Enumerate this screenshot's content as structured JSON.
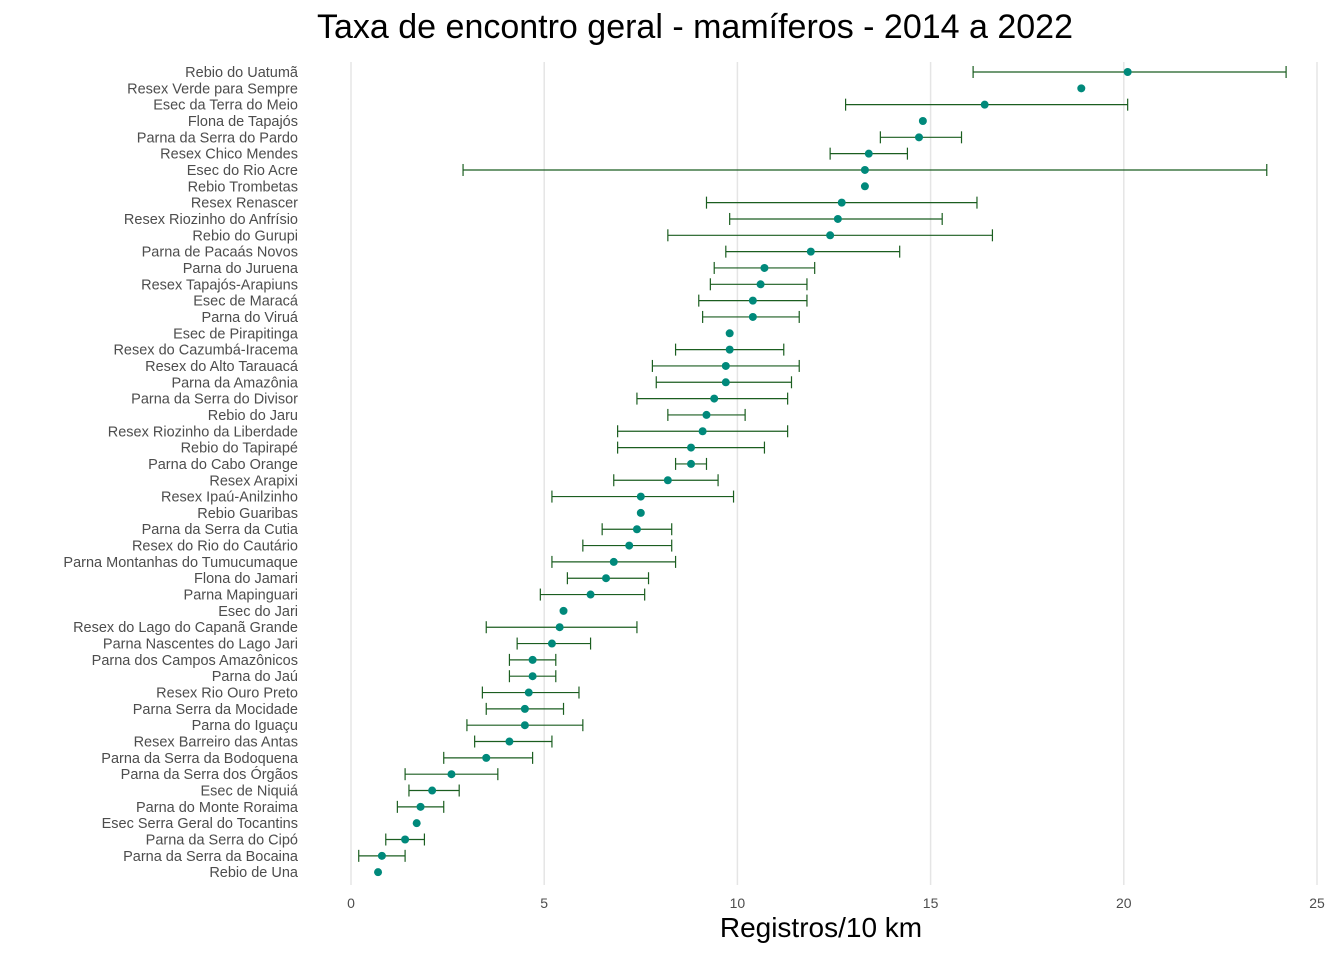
{
  "chart_data": {
    "type": "scatter",
    "title": "Taxa de encontro geral - mamíferos - 2014 a 2022",
    "xlabel": "Registros/10 km",
    "ylabel": "",
    "xlim": [
      0,
      25
    ],
    "xticks": [
      "0",
      "5",
      "10",
      "15",
      "20",
      "25"
    ],
    "grid": "vertical",
    "colors": {
      "point": "#00897B",
      "errorbar": "#1B5E20",
      "grid": "#E5E5E5",
      "label": "#4D4D4D"
    },
    "categories": [
      "Rebio do Uatumã",
      "Resex Verde para Sempre",
      "Esec da Terra do Meio",
      "Flona de Tapajós",
      "Parna da Serra do Pardo",
      "Resex Chico Mendes",
      "Esec do Rio Acre",
      "Rebio Trombetas",
      "Resex Renascer",
      "Resex Riozinho do Anfrísio",
      "Rebio do Gurupi",
      "Parna de Pacaás Novos",
      "Parna do Juruena",
      "Resex Tapajós-Arapiuns",
      "Esec de Maracá",
      "Parna do Viruá",
      "Esec de Pirapitinga",
      "Resex do Cazumbá-Iracema",
      "Resex do Alto Tarauacá",
      "Parna da Amazônia",
      "Parna da Serra do Divisor",
      "Rebio do Jaru",
      "Resex Riozinho da Liberdade",
      "Rebio do Tapirapé",
      "Parna do Cabo Orange",
      "Resex Arapixi",
      "Resex Ipaú-Anilzinho",
      "Rebio Guaribas",
      "Parna da Serra da Cutia",
      "Resex do Rio do Cautário",
      "Parna Montanhas do Tumucumaque",
      "Flona do Jamari",
      "Parna Mapinguari",
      "Esec do Jari",
      "Resex do Lago do Capanã Grande",
      "Parna Nascentes do Lago Jari",
      "Parna dos Campos Amazônicos",
      "Parna do Jaú",
      "Resex Rio Ouro Preto",
      "Parna Serra da Mocidade",
      "Parna do Iguaçu",
      "Resex Barreiro das Antas",
      "Parna da Serra da Bodoquena",
      "Parna da Serra dos Órgãos",
      "Esec de Niquiá",
      "Parna do Monte Roraima",
      "Esec Serra Geral do Tocantins",
      "Parna da Serra do Cipó",
      "Parna da Serra da Bocaina",
      "Rebio de Una"
    ],
    "values": [
      20.1,
      18.9,
      16.4,
      14.8,
      14.7,
      13.4,
      13.3,
      13.3,
      12.7,
      12.6,
      12.4,
      11.9,
      10.7,
      10.6,
      10.4,
      10.4,
      9.8,
      9.8,
      9.7,
      9.7,
      9.4,
      9.2,
      9.1,
      8.8,
      8.8,
      8.2,
      7.5,
      7.5,
      7.4,
      7.2,
      6.8,
      6.6,
      6.2,
      5.5,
      5.4,
      5.2,
      4.7,
      4.7,
      4.6,
      4.5,
      4.5,
      4.1,
      3.5,
      2.6,
      2.1,
      1.8,
      1.7,
      1.4,
      0.8,
      0.7
    ],
    "lower": [
      16.1,
      null,
      12.8,
      null,
      13.7,
      12.4,
      2.9,
      null,
      9.2,
      9.8,
      8.2,
      9.7,
      9.4,
      9.3,
      9.0,
      9.1,
      null,
      8.4,
      7.8,
      7.9,
      7.4,
      8.2,
      6.9,
      6.9,
      8.4,
      6.8,
      5.2,
      null,
      6.5,
      6.0,
      5.2,
      5.6,
      4.9,
      null,
      3.5,
      4.3,
      4.1,
      4.1,
      3.4,
      3.5,
      3.0,
      3.2,
      2.4,
      1.4,
      1.5,
      1.2,
      null,
      0.9,
      0.2,
      null
    ],
    "upper": [
      24.2,
      null,
      20.1,
      null,
      15.8,
      14.4,
      23.7,
      null,
      16.2,
      15.3,
      16.6,
      14.2,
      12.0,
      11.8,
      11.8,
      11.6,
      null,
      11.2,
      11.6,
      11.4,
      11.3,
      10.2,
      11.3,
      10.7,
      9.2,
      9.5,
      9.9,
      null,
      8.3,
      8.3,
      8.4,
      7.7,
      7.6,
      null,
      7.4,
      6.2,
      5.3,
      5.3,
      5.9,
      5.5,
      6.0,
      5.2,
      4.7,
      3.8,
      2.8,
      2.4,
      null,
      1.9,
      1.4,
      null
    ]
  }
}
